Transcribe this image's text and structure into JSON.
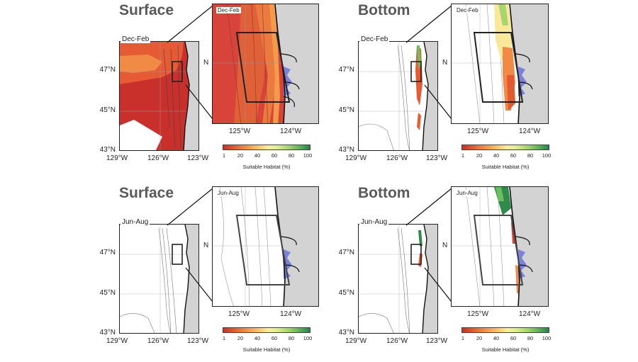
{
  "panels": [
    {
      "heading": "Surface",
      "season": "Dec-Feb",
      "inset_season": "Dec-Feb",
      "state": "full"
    },
    {
      "heading": "Bottom",
      "season": "Dec-Feb",
      "inset_season": "Dec-Feb",
      "state": "shelf"
    },
    {
      "heading": "Surface",
      "season": "Jun-Aug",
      "inset_season": "Jun-Aug",
      "state": "none"
    },
    {
      "heading": "Bottom",
      "season": "Jun-Aug",
      "inset_season": "Jun-Aug",
      "state": "shelf-mix"
    }
  ],
  "map_ticks": {
    "y": [
      "47°N",
      "45°N",
      "43°N"
    ],
    "x": [
      "129°W",
      "126°W",
      "123°W"
    ],
    "inset_x": [
      "125°W",
      "124°W"
    ],
    "inset_y": "N"
  },
  "colorbar": {
    "ticks": [
      "1",
      "20",
      "40",
      "60",
      "80",
      "100"
    ],
    "label": "Suitable Habitat (%)"
  },
  "colors": {
    "land": "#d3d3d3",
    "red_high": "#c9302c",
    "red_mid": "#e65b34",
    "orange": "#f08a45",
    "yellow": "#f9d77b",
    "light_green": "#c7e587",
    "green": "#2e8b4a",
    "water": "#7b82d8",
    "coast": "#111111"
  }
}
